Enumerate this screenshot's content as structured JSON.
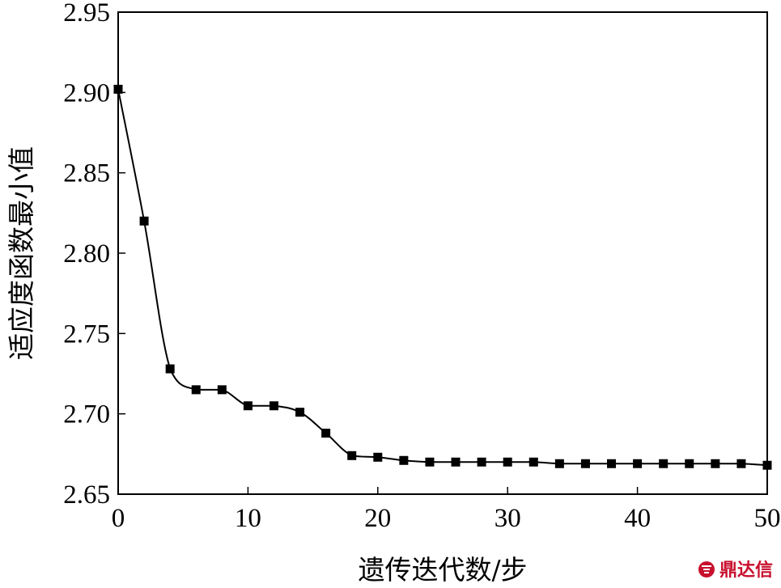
{
  "chart_data": {
    "type": "line",
    "title": "",
    "xlabel": "遗传迭代数/步",
    "ylabel": "适应度函数最小值",
    "xlim": [
      0,
      50
    ],
    "ylim": [
      2.65,
      2.95
    ],
    "xticks": [
      0,
      10,
      20,
      30,
      40,
      50
    ],
    "yticks": [
      2.65,
      2.7,
      2.75,
      2.8,
      2.85,
      2.9,
      2.95
    ],
    "xtick_labels": [
      "0",
      "10",
      "20",
      "30",
      "40",
      "50"
    ],
    "ytick_labels": [
      "2.65",
      "2.70",
      "2.75",
      "2.80",
      "2.85",
      "2.90",
      "2.95"
    ],
    "grid": false,
    "marker": "square",
    "series": [
      {
        "x": [
          0,
          2,
          4,
          6,
          8,
          10,
          12,
          14,
          16,
          18,
          20,
          22,
          24,
          26,
          28,
          30,
          32,
          34,
          36,
          38,
          40,
          42,
          44,
          46,
          48,
          50
        ],
        "y": [
          2.902,
          2.82,
          2.728,
          2.715,
          2.715,
          2.705,
          2.705,
          2.701,
          2.688,
          2.674,
          2.673,
          2.671,
          2.67,
          2.67,
          2.67,
          2.67,
          2.67,
          2.669,
          2.669,
          2.669,
          2.669,
          2.669,
          2.669,
          2.669,
          2.669,
          2.668
        ]
      }
    ],
    "color": "#000000"
  },
  "watermark": {
    "text": "鼎达信",
    "color": "#c8102e"
  }
}
